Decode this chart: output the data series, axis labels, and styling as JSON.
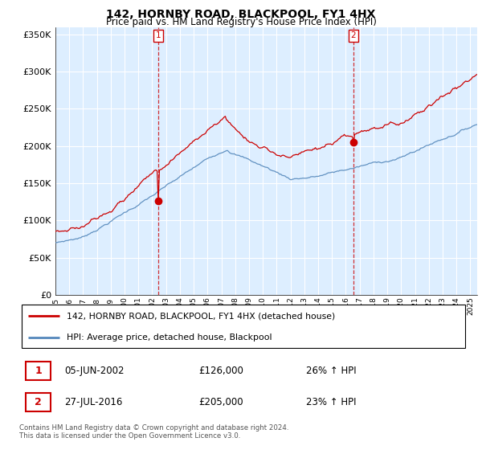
{
  "title": "142, HORNBY ROAD, BLACKPOOL, FY1 4HX",
  "subtitle": "Price paid vs. HM Land Registry's House Price Index (HPI)",
  "red_label": "142, HORNBY ROAD, BLACKPOOL, FY1 4HX (detached house)",
  "blue_label": "HPI: Average price, detached house, Blackpool",
  "point1_date": "05-JUN-2002",
  "point1_price": 126000,
  "point1_hpi": "26% ↑ HPI",
  "point2_date": "27-JUL-2016",
  "point2_price": 205000,
  "point2_hpi": "23% ↑ HPI",
  "footer": "Contains HM Land Registry data © Crown copyright and database right 2024.\nThis data is licensed under the Open Government Licence v3.0.",
  "ylim": [
    0,
    360000
  ],
  "yticks": [
    0,
    50000,
    100000,
    150000,
    200000,
    250000,
    300000,
    350000
  ],
  "background_color": "#ffffff",
  "chart_bg_color": "#ddeeff",
  "grid_color": "#ffffff",
  "red_color": "#cc0000",
  "blue_color": "#5588bb",
  "sale1_x": 2002.4167,
  "sale1_y": 126000,
  "sale2_x": 2016.5417,
  "sale2_y": 205000,
  "xmin": 1995,
  "xmax": 2025.5
}
